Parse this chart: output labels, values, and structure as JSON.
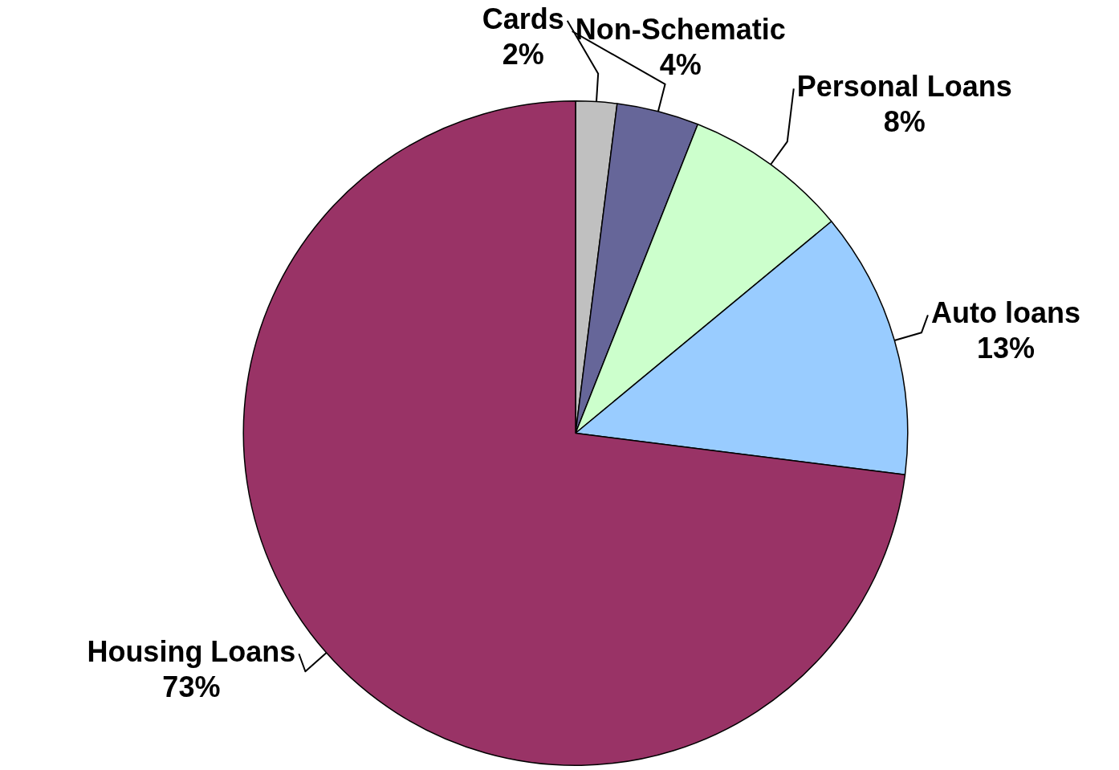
{
  "chart_data": {
    "type": "pie",
    "categories": [
      "Cards",
      "Non-Schematic",
      "Personal Loans",
      "Auto loans",
      "Housing Loans"
    ],
    "values": [
      2,
      4,
      8,
      13,
      73
    ],
    "value_labels": [
      "2%",
      "4%",
      "8%",
      "13%",
      "73%"
    ],
    "colors": [
      "#c0c0c0",
      "#666699",
      "#ccffcc",
      "#99ccff",
      "#993366"
    ],
    "legend": false
  }
}
